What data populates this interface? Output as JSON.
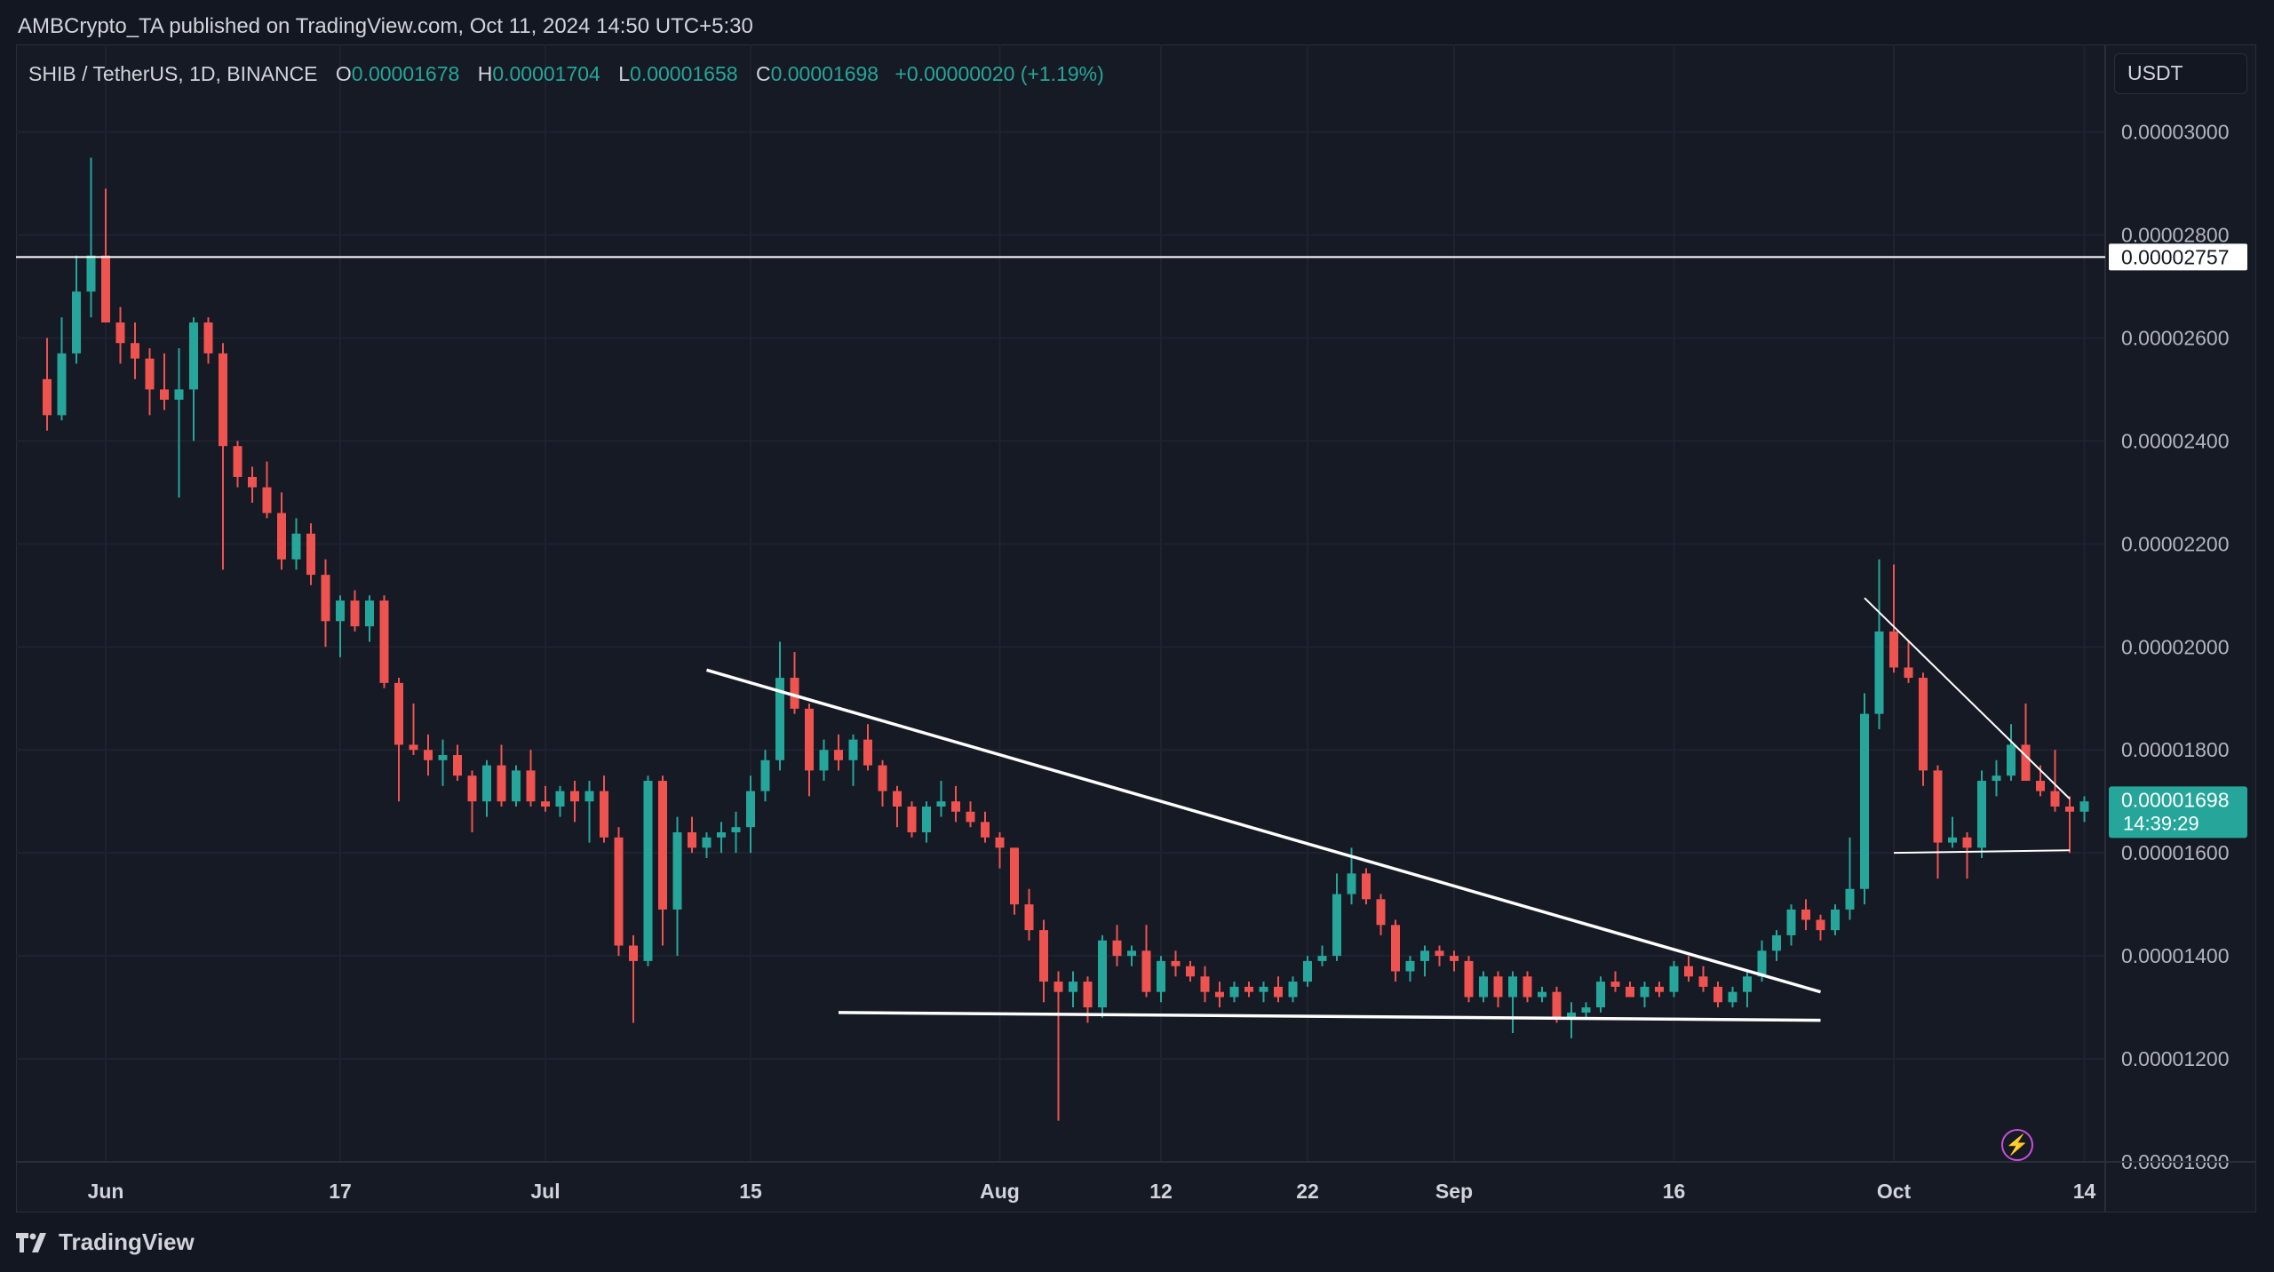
{
  "header": {
    "publisher": "AMBCrypto_TA published on TradingView.com, Oct 11, 2024 14:50 UTC+5:30"
  },
  "legend": {
    "symbol": "SHIB / TetherUS, 1D, BINANCE",
    "open_label": "O",
    "open": "0.00001678",
    "high_label": "H",
    "high": "0.00001704",
    "low_label": "L",
    "low": "0.00001658",
    "close_label": "C",
    "close": "0.00001698",
    "change": "+0.00000020 (+1.19%)"
  },
  "unit_button": "USDT",
  "footer": {
    "brand": "TradingView",
    "logo_icon": "tradingview-logo-icon"
  },
  "colors": {
    "up": "#26a69a",
    "down": "#ef5350",
    "background": "#131722",
    "trend": "#ffffff"
  },
  "chart_data": {
    "type": "candlestick",
    "ylim": [
      1e-05,
      3.17e-05
    ],
    "grid": true,
    "y_tick_labels": [
      "0.00001000",
      "0.00001200",
      "0.00001400",
      "0.00001600",
      "0.00001800",
      "0.00002000",
      "0.00002200",
      "0.00002400",
      "0.00002600",
      "0.00002800",
      "0.00003000"
    ],
    "x_tick_labels": [
      {
        "label": "Jun",
        "x": "2024-06-01"
      },
      {
        "label": "17",
        "x": "2024-06-17"
      },
      {
        "label": "Jul",
        "x": "2024-07-01"
      },
      {
        "label": "15",
        "x": "2024-07-15"
      },
      {
        "label": "Aug",
        "x": "2024-08-01"
      },
      {
        "label": "12",
        "x": "2024-08-12"
      },
      {
        "label": "22",
        "x": "2024-08-22"
      },
      {
        "label": "Sep",
        "x": "2024-09-01"
      },
      {
        "label": "16",
        "x": "2024-09-16"
      },
      {
        "label": "Oct",
        "x": "2024-10-01"
      },
      {
        "label": "14",
        "x": "2024-10-14"
      }
    ],
    "horizontal_line": {
      "value": 2.757e-05,
      "label": "0.00002757"
    },
    "price_tag": {
      "price": "0.00001698",
      "countdown": "14:39:29",
      "value": 1.698e-05
    },
    "trendlines": [
      {
        "from": {
          "x": "2024-07-12",
          "y": 1.955e-05
        },
        "to": {
          "x": "2024-09-26",
          "y": 1.33e-05
        }
      },
      {
        "from": {
          "x": "2024-07-21",
          "y": 1.29e-05
        },
        "to": {
          "x": "2024-09-26",
          "y": 1.275e-05
        }
      },
      {
        "from": {
          "x": "2024-09-29",
          "y": 2.095e-05
        },
        "to": {
          "x": "2024-10-13",
          "y": 1.705e-05
        }
      },
      {
        "from": {
          "x": "2024-10-01",
          "y": 1.6e-05
        },
        "to": {
          "x": "2024-10-13",
          "y": 1.605e-05
        }
      }
    ],
    "candles": [
      {
        "d": "2024-05-28",
        "o": 2.52,
        "h": 2.6,
        "l": 2.42,
        "c": 2.45
      },
      {
        "d": "2024-05-29",
        "o": 2.45,
        "h": 2.64,
        "l": 2.44,
        "c": 2.57
      },
      {
        "d": "2024-05-30",
        "o": 2.57,
        "h": 2.76,
        "l": 2.55,
        "c": 2.69
      },
      {
        "d": "2024-05-31",
        "o": 2.69,
        "h": 2.95,
        "l": 2.64,
        "c": 2.76
      },
      {
        "d": "2024-06-01",
        "o": 2.76,
        "h": 2.89,
        "l": 2.63,
        "c": 2.63
      },
      {
        "d": "2024-06-02",
        "o": 2.63,
        "h": 2.66,
        "l": 2.55,
        "c": 2.59
      },
      {
        "d": "2024-06-03",
        "o": 2.59,
        "h": 2.63,
        "l": 2.52,
        "c": 2.56
      },
      {
        "d": "2024-06-04",
        "o": 2.56,
        "h": 2.58,
        "l": 2.45,
        "c": 2.5
      },
      {
        "d": "2024-06-05",
        "o": 2.5,
        "h": 2.57,
        "l": 2.46,
        "c": 2.48
      },
      {
        "d": "2024-06-06",
        "o": 2.48,
        "h": 2.58,
        "l": 2.29,
        "c": 2.5
      },
      {
        "d": "2024-06-07",
        "o": 2.5,
        "h": 2.64,
        "l": 2.4,
        "c": 2.63
      },
      {
        "d": "2024-06-08",
        "o": 2.63,
        "h": 2.64,
        "l": 2.55,
        "c": 2.57
      },
      {
        "d": "2024-06-09",
        "o": 2.57,
        "h": 2.59,
        "l": 2.15,
        "c": 2.39
      },
      {
        "d": "2024-06-10",
        "o": 2.39,
        "h": 2.4,
        "l": 2.31,
        "c": 2.33
      },
      {
        "d": "2024-06-11",
        "o": 2.33,
        "h": 2.35,
        "l": 2.28,
        "c": 2.31
      },
      {
        "d": "2024-06-12",
        "o": 2.31,
        "h": 2.36,
        "l": 2.25,
        "c": 2.26
      },
      {
        "d": "2024-06-13",
        "o": 2.26,
        "h": 2.3,
        "l": 2.15,
        "c": 2.17
      },
      {
        "d": "2024-06-14",
        "o": 2.17,
        "h": 2.25,
        "l": 2.15,
        "c": 2.22
      },
      {
        "d": "2024-06-15",
        "o": 2.22,
        "h": 2.24,
        "l": 2.12,
        "c": 2.14
      },
      {
        "d": "2024-06-16",
        "o": 2.14,
        "h": 2.17,
        "l": 2.0,
        "c": 2.05
      },
      {
        "d": "2024-06-17",
        "o": 2.05,
        "h": 2.1,
        "l": 1.98,
        "c": 2.09
      },
      {
        "d": "2024-06-18",
        "o": 2.09,
        "h": 2.11,
        "l": 2.03,
        "c": 2.04
      },
      {
        "d": "2024-06-19",
        "o": 2.04,
        "h": 2.1,
        "l": 2.01,
        "c": 2.09
      },
      {
        "d": "2024-06-20",
        "o": 2.09,
        "h": 2.1,
        "l": 1.92,
        "c": 1.93
      },
      {
        "d": "2024-06-21",
        "o": 1.93,
        "h": 1.94,
        "l": 1.7,
        "c": 1.81
      },
      {
        "d": "2024-06-22",
        "o": 1.81,
        "h": 1.89,
        "l": 1.79,
        "c": 1.8
      },
      {
        "d": "2024-06-23",
        "o": 1.8,
        "h": 1.83,
        "l": 1.75,
        "c": 1.78
      },
      {
        "d": "2024-06-24",
        "o": 1.78,
        "h": 1.82,
        "l": 1.73,
        "c": 1.79
      },
      {
        "d": "2024-06-25",
        "o": 1.79,
        "h": 1.81,
        "l": 1.74,
        "c": 1.75
      },
      {
        "d": "2024-06-26",
        "o": 1.75,
        "h": 1.76,
        "l": 1.64,
        "c": 1.7
      },
      {
        "d": "2024-06-27",
        "o": 1.7,
        "h": 1.78,
        "l": 1.67,
        "c": 1.77
      },
      {
        "d": "2024-06-28",
        "o": 1.77,
        "h": 1.81,
        "l": 1.69,
        "c": 1.7
      },
      {
        "d": "2024-06-29",
        "o": 1.7,
        "h": 1.77,
        "l": 1.69,
        "c": 1.76
      },
      {
        "d": "2024-06-30",
        "o": 1.76,
        "h": 1.8,
        "l": 1.69,
        "c": 1.7
      },
      {
        "d": "2024-07-01",
        "o": 1.7,
        "h": 1.73,
        "l": 1.68,
        "c": 1.69
      },
      {
        "d": "2024-07-02",
        "o": 1.69,
        "h": 1.73,
        "l": 1.67,
        "c": 1.72
      },
      {
        "d": "2024-07-03",
        "o": 1.72,
        "h": 1.74,
        "l": 1.66,
        "c": 1.7
      },
      {
        "d": "2024-07-04",
        "o": 1.7,
        "h": 1.74,
        "l": 1.62,
        "c": 1.72
      },
      {
        "d": "2024-07-05",
        "o": 1.72,
        "h": 1.75,
        "l": 1.62,
        "c": 1.63
      },
      {
        "d": "2024-07-06",
        "o": 1.63,
        "h": 1.65,
        "l": 1.4,
        "c": 1.42
      },
      {
        "d": "2024-07-07",
        "o": 1.42,
        "h": 1.44,
        "l": 1.27,
        "c": 1.39
      },
      {
        "d": "2024-07-08",
        "o": 1.39,
        "h": 1.75,
        "l": 1.38,
        "c": 1.74
      },
      {
        "d": "2024-07-09",
        "o": 1.74,
        "h": 1.75,
        "l": 1.42,
        "c": 1.49
      },
      {
        "d": "2024-07-10",
        "o": 1.49,
        "h": 1.67,
        "l": 1.4,
        "c": 1.64
      },
      {
        "d": "2024-07-11",
        "o": 1.64,
        "h": 1.67,
        "l": 1.6,
        "c": 1.61
      },
      {
        "d": "2024-07-12",
        "o": 1.61,
        "h": 1.64,
        "l": 1.59,
        "c": 1.63
      },
      {
        "d": "2024-07-13",
        "o": 1.63,
        "h": 1.66,
        "l": 1.6,
        "c": 1.64
      },
      {
        "d": "2024-07-14",
        "o": 1.64,
        "h": 1.68,
        "l": 1.6,
        "c": 1.65
      },
      {
        "d": "2024-07-15",
        "o": 1.65,
        "h": 1.75,
        "l": 1.6,
        "c": 1.72
      },
      {
        "d": "2024-07-16",
        "o": 1.72,
        "h": 1.8,
        "l": 1.7,
        "c": 1.78
      },
      {
        "d": "2024-07-17",
        "o": 1.78,
        "h": 2.01,
        "l": 1.76,
        "c": 1.94
      },
      {
        "d": "2024-07-18",
        "o": 1.94,
        "h": 1.99,
        "l": 1.87,
        "c": 1.88
      },
      {
        "d": "2024-07-19",
        "o": 1.88,
        "h": 1.89,
        "l": 1.71,
        "c": 1.76
      },
      {
        "d": "2024-07-20",
        "o": 1.76,
        "h": 1.82,
        "l": 1.74,
        "c": 1.8
      },
      {
        "d": "2024-07-21",
        "o": 1.8,
        "h": 1.83,
        "l": 1.76,
        "c": 1.78
      },
      {
        "d": "2024-07-22",
        "o": 1.78,
        "h": 1.83,
        "l": 1.73,
        "c": 1.82
      },
      {
        "d": "2024-07-23",
        "o": 1.82,
        "h": 1.85,
        "l": 1.76,
        "c": 1.77
      },
      {
        "d": "2024-07-24",
        "o": 1.77,
        "h": 1.78,
        "l": 1.69,
        "c": 1.72
      },
      {
        "d": "2024-07-25",
        "o": 1.72,
        "h": 1.73,
        "l": 1.65,
        "c": 1.69
      },
      {
        "d": "2024-07-26",
        "o": 1.69,
        "h": 1.7,
        "l": 1.63,
        "c": 1.64
      },
      {
        "d": "2024-07-27",
        "o": 1.64,
        "h": 1.7,
        "l": 1.62,
        "c": 1.69
      },
      {
        "d": "2024-07-28",
        "o": 1.69,
        "h": 1.74,
        "l": 1.67,
        "c": 1.7
      },
      {
        "d": "2024-07-29",
        "o": 1.7,
        "h": 1.73,
        "l": 1.66,
        "c": 1.68
      },
      {
        "d": "2024-07-30",
        "o": 1.68,
        "h": 1.7,
        "l": 1.65,
        "c": 1.66
      },
      {
        "d": "2024-07-31",
        "o": 1.66,
        "h": 1.68,
        "l": 1.62,
        "c": 1.63
      },
      {
        "d": "2024-08-01",
        "o": 1.63,
        "h": 1.64,
        "l": 1.57,
        "c": 1.61
      },
      {
        "d": "2024-08-02",
        "o": 1.61,
        "h": 1.61,
        "l": 1.48,
        "c": 1.5
      },
      {
        "d": "2024-08-03",
        "o": 1.5,
        "h": 1.53,
        "l": 1.43,
        "c": 1.45
      },
      {
        "d": "2024-08-04",
        "o": 1.45,
        "h": 1.47,
        "l": 1.31,
        "c": 1.35
      },
      {
        "d": "2024-08-05",
        "o": 1.35,
        "h": 1.37,
        "l": 1.08,
        "c": 1.33
      },
      {
        "d": "2024-08-06",
        "o": 1.33,
        "h": 1.37,
        "l": 1.3,
        "c": 1.35
      },
      {
        "d": "2024-08-07",
        "o": 1.35,
        "h": 1.36,
        "l": 1.27,
        "c": 1.3
      },
      {
        "d": "2024-08-08",
        "o": 1.3,
        "h": 1.44,
        "l": 1.28,
        "c": 1.43
      },
      {
        "d": "2024-08-09",
        "o": 1.43,
        "h": 1.46,
        "l": 1.38,
        "c": 1.4
      },
      {
        "d": "2024-08-10",
        "o": 1.4,
        "h": 1.42,
        "l": 1.38,
        "c": 1.41
      },
      {
        "d": "2024-08-11",
        "o": 1.41,
        "h": 1.46,
        "l": 1.32,
        "c": 1.33
      },
      {
        "d": "2024-08-12",
        "o": 1.33,
        "h": 1.4,
        "l": 1.31,
        "c": 1.39
      },
      {
        "d": "2024-08-13",
        "o": 1.39,
        "h": 1.41,
        "l": 1.36,
        "c": 1.38
      },
      {
        "d": "2024-08-14",
        "o": 1.38,
        "h": 1.39,
        "l": 1.35,
        "c": 1.36
      },
      {
        "d": "2024-08-15",
        "o": 1.36,
        "h": 1.38,
        "l": 1.31,
        "c": 1.33
      },
      {
        "d": "2024-08-16",
        "o": 1.33,
        "h": 1.35,
        "l": 1.3,
        "c": 1.32
      },
      {
        "d": "2024-08-17",
        "o": 1.32,
        "h": 1.35,
        "l": 1.31,
        "c": 1.34
      },
      {
        "d": "2024-08-18",
        "o": 1.34,
        "h": 1.35,
        "l": 1.32,
        "c": 1.33
      },
      {
        "d": "2024-08-19",
        "o": 1.33,
        "h": 1.35,
        "l": 1.31,
        "c": 1.34
      },
      {
        "d": "2024-08-20",
        "o": 1.34,
        "h": 1.36,
        "l": 1.31,
        "c": 1.32
      },
      {
        "d": "2024-08-21",
        "o": 1.32,
        "h": 1.36,
        "l": 1.31,
        "c": 1.35
      },
      {
        "d": "2024-08-22",
        "o": 1.35,
        "h": 1.4,
        "l": 1.34,
        "c": 1.39
      },
      {
        "d": "2024-08-23",
        "o": 1.39,
        "h": 1.42,
        "l": 1.38,
        "c": 1.4
      },
      {
        "d": "2024-08-24",
        "o": 1.4,
        "h": 1.56,
        "l": 1.39,
        "c": 1.52
      },
      {
        "d": "2024-08-25",
        "o": 1.52,
        "h": 1.61,
        "l": 1.5,
        "c": 1.56
      },
      {
        "d": "2024-08-26",
        "o": 1.56,
        "h": 1.57,
        "l": 1.5,
        "c": 1.51
      },
      {
        "d": "2024-08-27",
        "o": 1.51,
        "h": 1.52,
        "l": 1.44,
        "c": 1.46
      },
      {
        "d": "2024-08-28",
        "o": 1.46,
        "h": 1.47,
        "l": 1.35,
        "c": 1.37
      },
      {
        "d": "2024-08-29",
        "o": 1.37,
        "h": 1.4,
        "l": 1.35,
        "c": 1.39
      },
      {
        "d": "2024-08-30",
        "o": 1.39,
        "h": 1.42,
        "l": 1.36,
        "c": 1.41
      },
      {
        "d": "2024-08-31",
        "o": 1.41,
        "h": 1.42,
        "l": 1.38,
        "c": 1.4
      },
      {
        "d": "2024-09-01",
        "o": 1.4,
        "h": 1.41,
        "l": 1.37,
        "c": 1.39
      },
      {
        "d": "2024-09-02",
        "o": 1.39,
        "h": 1.4,
        "l": 1.31,
        "c": 1.32
      },
      {
        "d": "2024-09-03",
        "o": 1.32,
        "h": 1.37,
        "l": 1.31,
        "c": 1.36
      },
      {
        "d": "2024-09-04",
        "o": 1.36,
        "h": 1.37,
        "l": 1.3,
        "c": 1.32
      },
      {
        "d": "2024-09-05",
        "o": 1.32,
        "h": 1.37,
        "l": 1.25,
        "c": 1.36
      },
      {
        "d": "2024-09-06",
        "o": 1.36,
        "h": 1.37,
        "l": 1.31,
        "c": 1.32
      },
      {
        "d": "2024-09-07",
        "o": 1.32,
        "h": 1.34,
        "l": 1.31,
        "c": 1.33
      },
      {
        "d": "2024-09-08",
        "o": 1.33,
        "h": 1.34,
        "l": 1.27,
        "c": 1.28
      },
      {
        "d": "2024-09-09",
        "o": 1.28,
        "h": 1.31,
        "l": 1.24,
        "c": 1.29
      },
      {
        "d": "2024-09-10",
        "o": 1.29,
        "h": 1.31,
        "l": 1.28,
        "c": 1.3
      },
      {
        "d": "2024-09-11",
        "o": 1.3,
        "h": 1.36,
        "l": 1.29,
        "c": 1.35
      },
      {
        "d": "2024-09-12",
        "o": 1.35,
        "h": 1.37,
        "l": 1.33,
        "c": 1.34
      },
      {
        "d": "2024-09-13",
        "o": 1.34,
        "h": 1.35,
        "l": 1.32,
        "c": 1.32
      },
      {
        "d": "2024-09-14",
        "o": 1.32,
        "h": 1.35,
        "l": 1.3,
        "c": 1.34
      },
      {
        "d": "2024-09-15",
        "o": 1.34,
        "h": 1.35,
        "l": 1.32,
        "c": 1.33
      },
      {
        "d": "2024-09-16",
        "o": 1.33,
        "h": 1.39,
        "l": 1.32,
        "c": 1.38
      },
      {
        "d": "2024-09-17",
        "o": 1.38,
        "h": 1.4,
        "l": 1.35,
        "c": 1.36
      },
      {
        "d": "2024-09-18",
        "o": 1.36,
        "h": 1.38,
        "l": 1.33,
        "c": 1.34
      },
      {
        "d": "2024-09-19",
        "o": 1.34,
        "h": 1.35,
        "l": 1.3,
        "c": 1.31
      },
      {
        "d": "2024-09-20",
        "o": 1.31,
        "h": 1.34,
        "l": 1.3,
        "c": 1.33
      },
      {
        "d": "2024-09-21",
        "o": 1.33,
        "h": 1.37,
        "l": 1.3,
        "c": 1.36
      },
      {
        "d": "2024-09-22",
        "o": 1.36,
        "h": 1.43,
        "l": 1.35,
        "c": 1.41
      },
      {
        "d": "2024-09-23",
        "o": 1.41,
        "h": 1.45,
        "l": 1.39,
        "c": 1.44
      },
      {
        "d": "2024-09-24",
        "o": 1.44,
        "h": 1.5,
        "l": 1.42,
        "c": 1.49
      },
      {
        "d": "2024-09-25",
        "o": 1.49,
        "h": 1.51,
        "l": 1.45,
        "c": 1.47
      },
      {
        "d": "2024-09-26",
        "o": 1.47,
        "h": 1.48,
        "l": 1.43,
        "c": 1.45
      },
      {
        "d": "2024-09-27",
        "o": 1.45,
        "h": 1.5,
        "l": 1.44,
        "c": 1.49
      },
      {
        "d": "2024-09-28",
        "o": 1.49,
        "h": 1.63,
        "l": 1.47,
        "c": 1.53
      },
      {
        "d": "2024-09-29",
        "o": 1.53,
        "h": 1.91,
        "l": 1.5,
        "c": 1.87
      },
      {
        "d": "2024-09-30",
        "o": 1.87,
        "h": 2.17,
        "l": 1.84,
        "c": 2.03
      },
      {
        "d": "2024-10-01",
        "o": 2.03,
        "h": 2.16,
        "l": 1.95,
        "c": 1.96
      },
      {
        "d": "2024-10-02",
        "o": 1.96,
        "h": 2.01,
        "l": 1.93,
        "c": 1.94
      },
      {
        "d": "2024-10-03",
        "o": 1.94,
        "h": 1.95,
        "l": 1.73,
        "c": 1.76
      },
      {
        "d": "2024-10-04",
        "o": 1.76,
        "h": 1.77,
        "l": 1.55,
        "c": 1.62
      },
      {
        "d": "2024-10-05",
        "o": 1.62,
        "h": 1.67,
        "l": 1.61,
        "c": 1.63
      },
      {
        "d": "2024-10-06",
        "o": 1.63,
        "h": 1.64,
        "l": 1.55,
        "c": 1.61
      },
      {
        "d": "2024-10-07",
        "o": 1.61,
        "h": 1.76,
        "l": 1.59,
        "c": 1.74
      },
      {
        "d": "2024-10-08",
        "o": 1.74,
        "h": 1.78,
        "l": 1.71,
        "c": 1.75
      },
      {
        "d": "2024-10-09",
        "o": 1.75,
        "h": 1.85,
        "l": 1.74,
        "c": 1.81
      },
      {
        "d": "2024-10-10",
        "o": 1.81,
        "h": 1.89,
        "l": 1.74,
        "c": 1.74
      },
      {
        "d": "2024-10-11",
        "o": 1.74,
        "h": 1.77,
        "l": 1.71,
        "c": 1.72
      },
      {
        "d": "2024-10-12",
        "o": 1.72,
        "h": 1.8,
        "l": 1.68,
        "c": 1.69
      },
      {
        "d": "2024-10-13",
        "o": 1.69,
        "h": 1.71,
        "l": 1.6,
        "c": 1.68
      },
      {
        "d": "2024-10-14",
        "o": 1.68,
        "h": 1.71,
        "l": 1.66,
        "c": 1.7
      }
    ],
    "candle_units": "1e-5 USDT"
  }
}
